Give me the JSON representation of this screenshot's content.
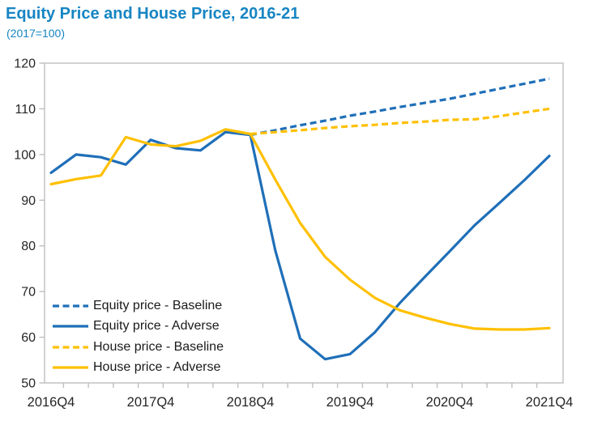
{
  "title": "Equity Price and House Price, 2016-21",
  "subtitle": "(2017=100)",
  "colors": {
    "title_text": "#1785C3",
    "equity_blue": "#1F6FB8",
    "house_gold": "#FFC000",
    "frame_gray": "#BFBFBF",
    "tick_text": "#262626"
  },
  "chart_data": {
    "type": "line",
    "title": "Equity Price and House Price, 2016-21",
    "subtitle": "(2017=100)",
    "grid": false,
    "legend_position": "inside-lower-left",
    "ylim": [
      50,
      120
    ],
    "y_ticks": [
      120,
      110,
      100,
      90,
      80,
      70,
      60,
      50
    ],
    "x_tick_labels": [
      "2016Q4",
      "2017Q4",
      "2018Q4",
      "2019Q4",
      "2020Q4",
      "2021Q4"
    ],
    "x_label_indices": [
      0,
      4,
      8,
      12,
      16,
      20
    ],
    "categories": [
      "2016Q4",
      "2017Q1",
      "2017Q2",
      "2017Q3",
      "2017Q4",
      "2018Q1",
      "2018Q2",
      "2018Q3",
      "2018Q4",
      "2019Q1",
      "2019Q2",
      "2019Q3",
      "2019Q4",
      "2020Q1",
      "2020Q2",
      "2020Q3",
      "2020Q4",
      "2021Q1",
      "2021Q2",
      "2021Q3",
      "2021Q4"
    ],
    "series": [
      {
        "name": "Equity price - Baseline",
        "color": "#1F6FB8",
        "dash": true,
        "values": [
          null,
          null,
          null,
          null,
          null,
          null,
          null,
          null,
          104.3,
          105.3,
          106.4,
          107.4,
          108.5,
          109.4,
          110.4,
          111.3,
          112.2,
          113.3,
          114.4,
          115.5,
          116.6
        ]
      },
      {
        "name": "Equity price - Adverse",
        "color": "#1F6FB8",
        "dash": false,
        "values": [
          96.0,
          100.0,
          99.4,
          97.8,
          103.2,
          101.4,
          100.9,
          104.9,
          104.3,
          79.0,
          59.7,
          55.2,
          56.3,
          61.1,
          67.5,
          73.2,
          78.8,
          84.5,
          89.4,
          94.4,
          99.7
        ]
      },
      {
        "name": "House price - Baseline",
        "color": "#FFC000",
        "dash": true,
        "values": [
          null,
          null,
          null,
          null,
          null,
          null,
          null,
          null,
          104.5,
          104.9,
          105.3,
          105.8,
          106.2,
          106.5,
          106.9,
          107.2,
          107.6,
          107.7,
          108.4,
          109.2,
          110.0
        ]
      },
      {
        "name": "House price - Adverse",
        "color": "#FFC000",
        "dash": false,
        "values": [
          93.5,
          94.6,
          95.4,
          103.8,
          102.2,
          101.8,
          103.0,
          105.5,
          104.5,
          94.5,
          85.0,
          77.6,
          72.6,
          68.6,
          65.9,
          64.3,
          62.9,
          61.9,
          61.7,
          61.7,
          62.0
        ]
      }
    ]
  }
}
